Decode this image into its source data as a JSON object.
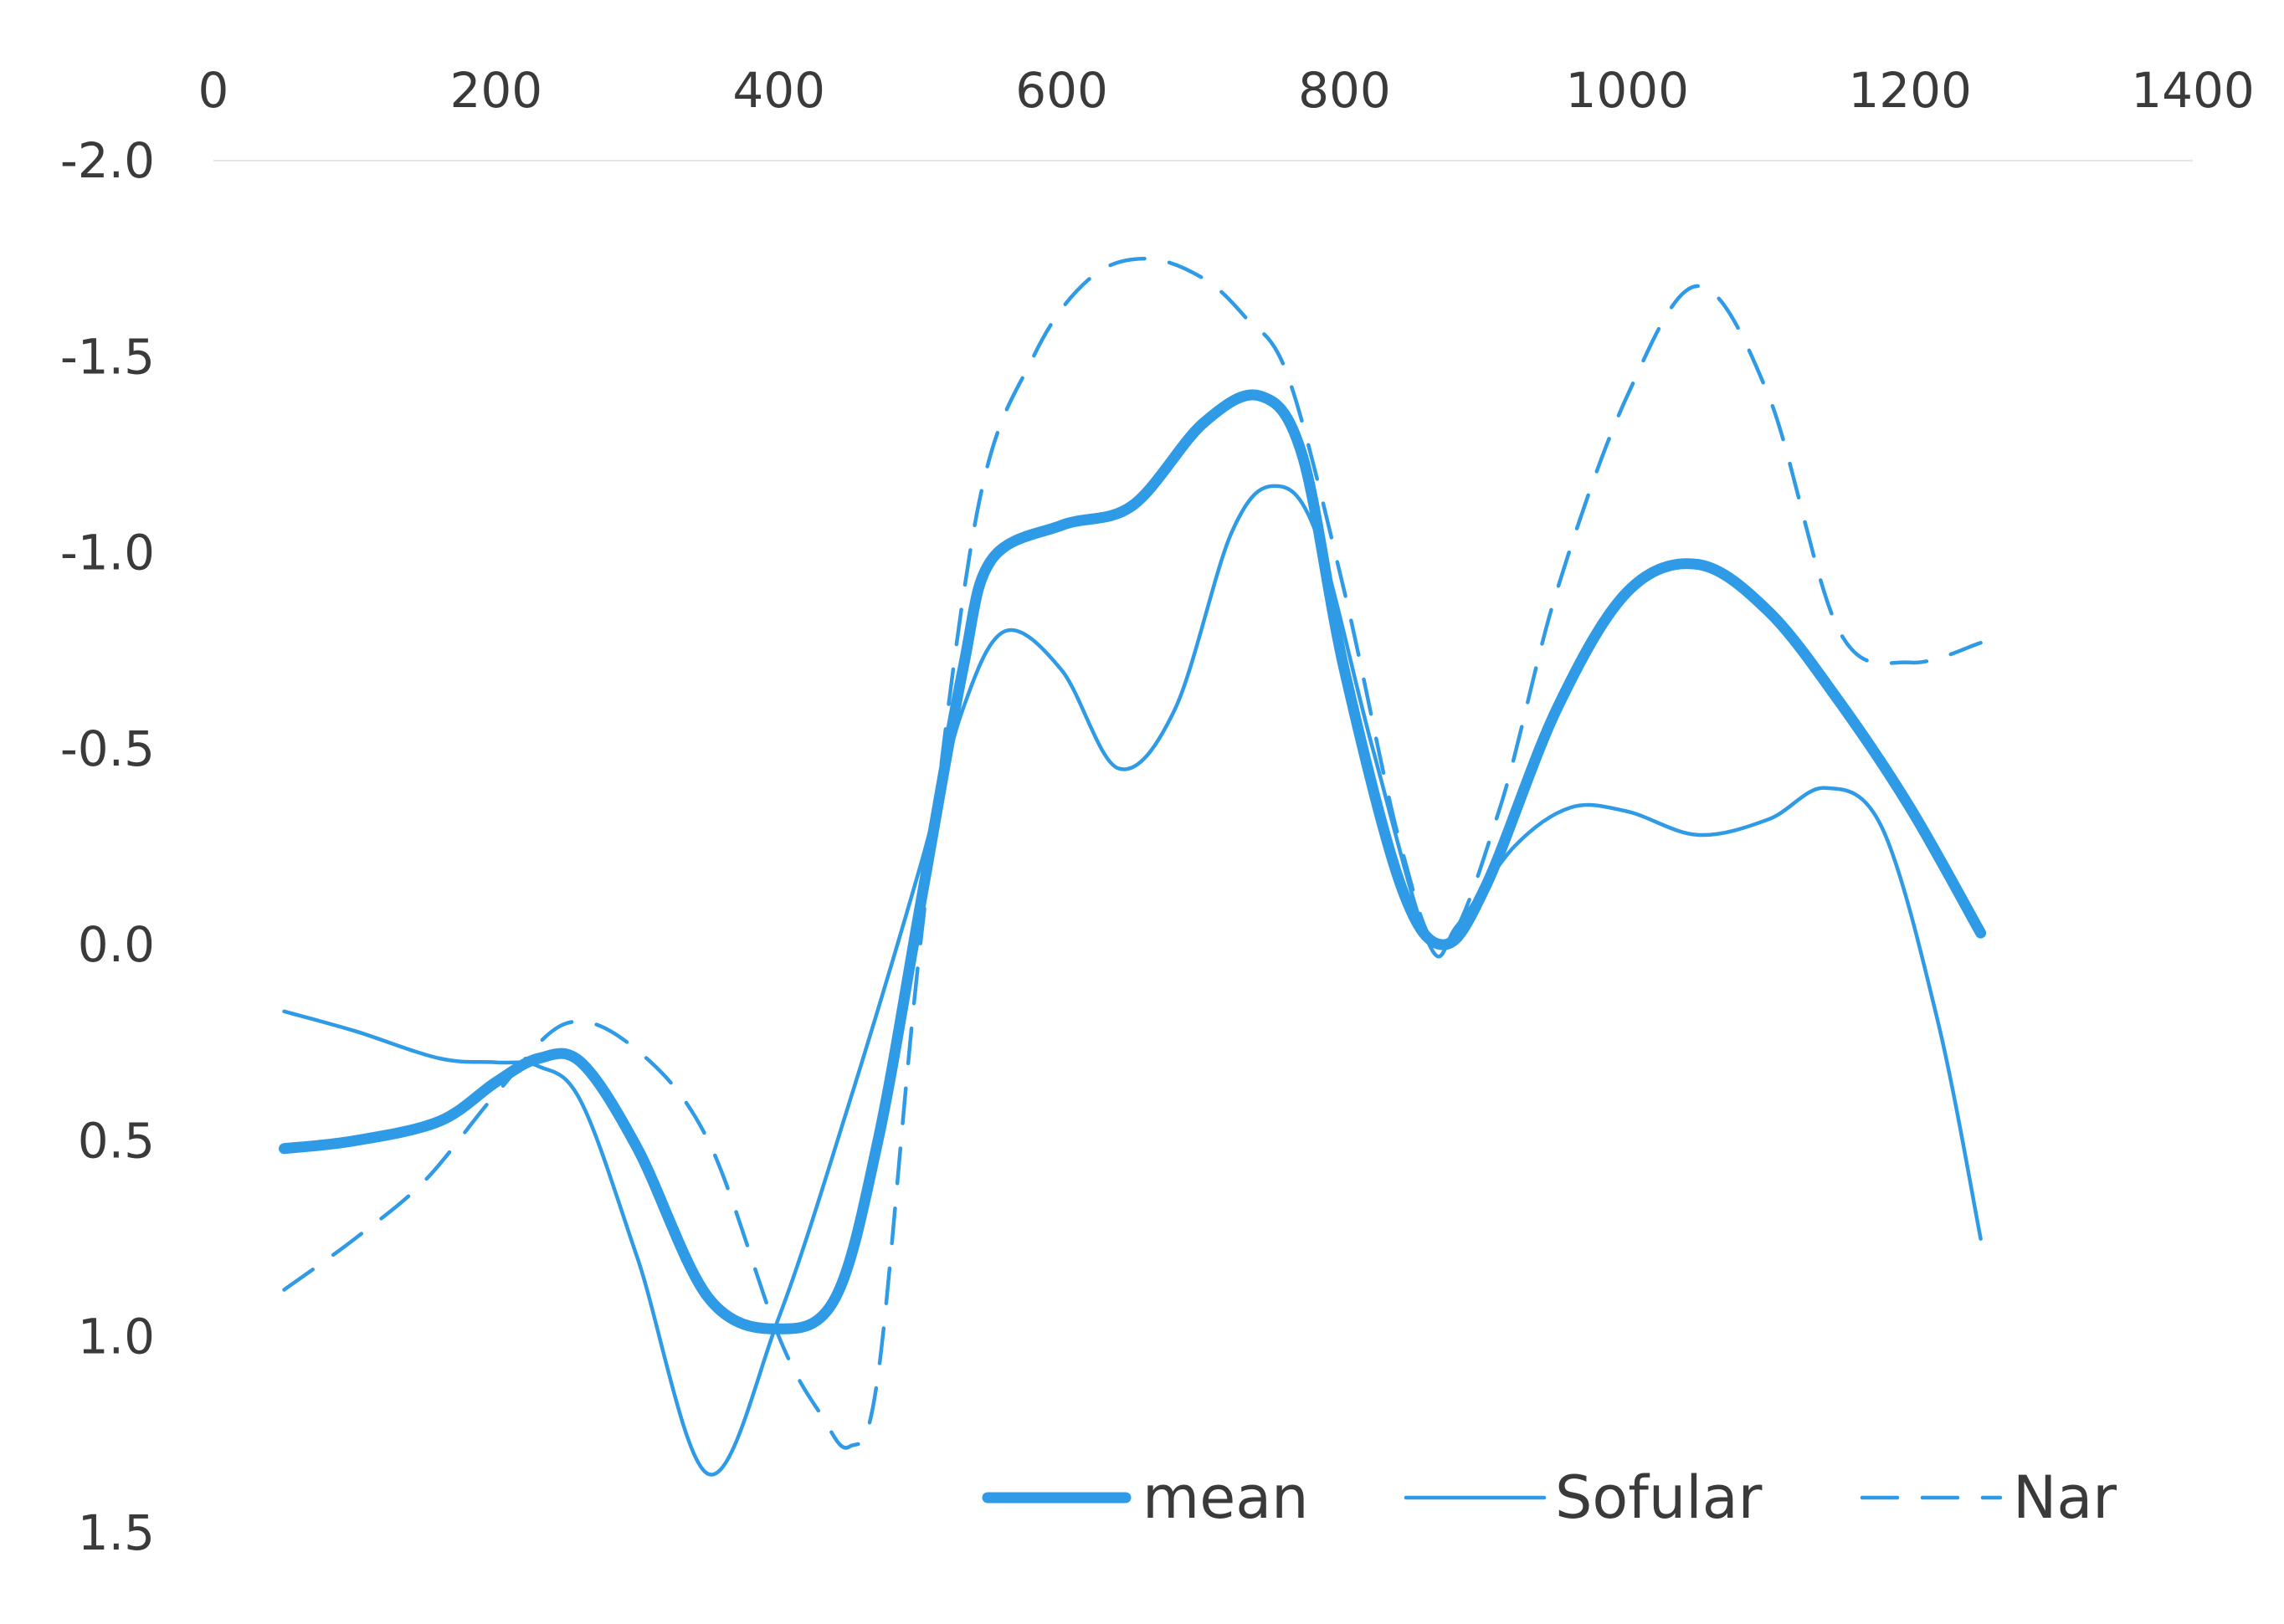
{
  "chart_data": {
    "type": "line",
    "title": "",
    "xlabel": "",
    "ylabel": "",
    "x_axis_position": "top",
    "y_axis_inverted": true,
    "xlim": [
      0,
      1400
    ],
    "ylim": [
      -2.0,
      1.5
    ],
    "x_ticks": [
      "0",
      "200",
      "400",
      "600",
      "800",
      "1000",
      "1200",
      "1400"
    ],
    "y_ticks": [
      "-2.0",
      "-1.5",
      "-1.0",
      "-0.5",
      "0.0",
      "0.5",
      "1.0",
      "1.5"
    ],
    "grid": false,
    "legend_position": "bottom-right",
    "colors": {
      "mean": "#2f9be6",
      "Sofular": "#2f9be6",
      "Nar": "#2f9be6"
    },
    "series": [
      {
        "name": "mean",
        "style": "thick-solid",
        "x": [
          50,
          100,
          160,
          200,
          230,
          260,
          300,
          350,
          400,
          440,
          470,
          500,
          530,
          550,
          600,
          650,
          700,
          740,
          770,
          800,
          840,
          870,
          900,
          950,
          1000,
          1050,
          1100,
          1150,
          1200,
          1250
        ],
        "y": [
          0.52,
          0.5,
          0.45,
          0.35,
          0.29,
          0.3,
          0.52,
          0.9,
          0.98,
          0.9,
          0.5,
          -0.1,
          -0.7,
          -0.98,
          -1.07,
          -1.12,
          -1.33,
          -1.4,
          -1.25,
          -0.7,
          -0.15,
          0.0,
          -0.15,
          -0.6,
          -0.9,
          -0.97,
          -0.85,
          -0.62,
          -0.35,
          -0.03
        ]
      },
      {
        "name": "Sofular",
        "style": "thin-solid",
        "x": [
          50,
          100,
          160,
          200,
          230,
          260,
          300,
          350,
          400,
          450,
          500,
          530,
          560,
          600,
          640,
          680,
          720,
          750,
          780,
          820,
          860,
          880,
          920,
          960,
          1000,
          1050,
          1100,
          1140,
          1180,
          1220,
          1250
        ],
        "y": [
          0.17,
          0.22,
          0.29,
          0.3,
          0.31,
          0.4,
          0.8,
          1.35,
          0.95,
          0.4,
          -0.2,
          -0.6,
          -0.8,
          -0.7,
          -0.45,
          -0.6,
          -1.05,
          -1.17,
          -1.05,
          -0.5,
          0.0,
          -0.05,
          -0.25,
          -0.35,
          -0.34,
          -0.28,
          -0.32,
          -0.4,
          -0.3,
          0.2,
          0.75
        ]
      },
      {
        "name": "Nar",
        "style": "dashed",
        "x": [
          50,
          100,
          150,
          200,
          250,
          300,
          350,
          400,
          430,
          450,
          470,
          500,
          540,
          580,
          620,
          660,
          700,
          730,
          760,
          800,
          840,
          870,
          910,
          950,
          1000,
          1050,
          1100,
          1150,
          1200,
          1250
        ],
        "y": [
          0.88,
          0.75,
          0.6,
          0.38,
          0.2,
          0.27,
          0.5,
          1.0,
          1.2,
          1.28,
          1.1,
          0.0,
          -1.1,
          -1.5,
          -1.7,
          -1.75,
          -1.7,
          -1.6,
          -1.45,
          -0.9,
          -0.25,
          0.0,
          -0.35,
          -0.9,
          -1.4,
          -1.68,
          -1.4,
          -0.8,
          -0.72,
          -0.77
        ]
      }
    ]
  }
}
